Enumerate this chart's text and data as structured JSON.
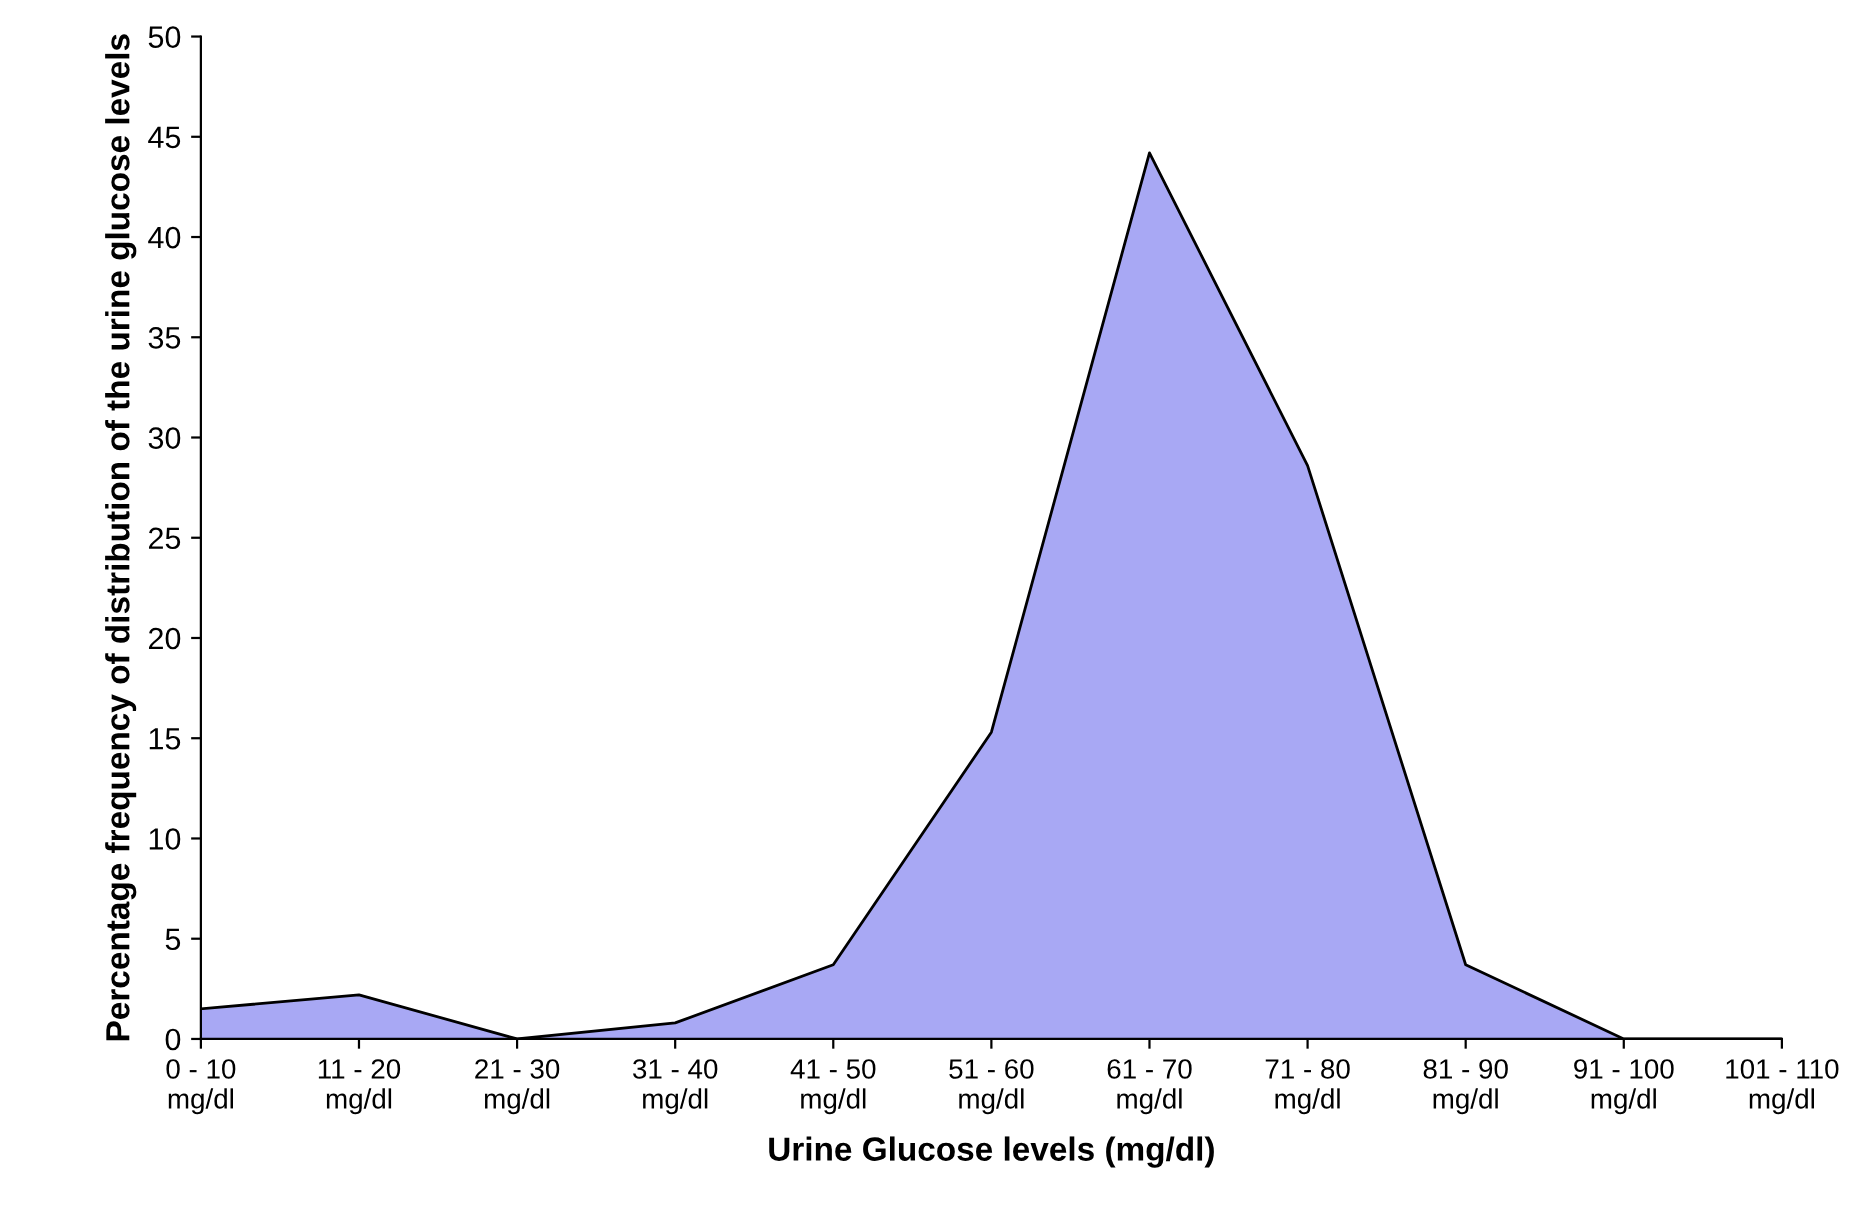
{
  "chart_data": {
    "type": "area",
    "xlabel": "Urine Glucose levels (mg/dl)",
    "ylabel": "Percentage frequency of distribution of the urine glucose levels",
    "categories": [
      "0 - 10\nmg/dl",
      "11 - 20\nmg/dl",
      "21 - 30\nmg/dl",
      "31 - 40\nmg/dl",
      "41 - 50\nmg/dl",
      "51 - 60\nmg/dl",
      "61 - 70\nmg/dl",
      "71 - 80\nmg/dl",
      "81 - 90\nmg/dl",
      "91 - 100\nmg/dl",
      "101 - 110\nmg/dl"
    ],
    "series": [
      {
        "color": "#a8a8f4",
        "values": [
          1.5,
          2.2,
          0,
          0.8,
          3.7,
          15.3,
          44.2,
          28.6,
          3.7,
          0,
          0
        ]
      }
    ],
    "ylim": [
      0,
      50
    ],
    "yticks": [
      0,
      5,
      10,
      15,
      20,
      25,
      30,
      35,
      40,
      45,
      50
    ],
    "grid": false,
    "legend": false
  }
}
